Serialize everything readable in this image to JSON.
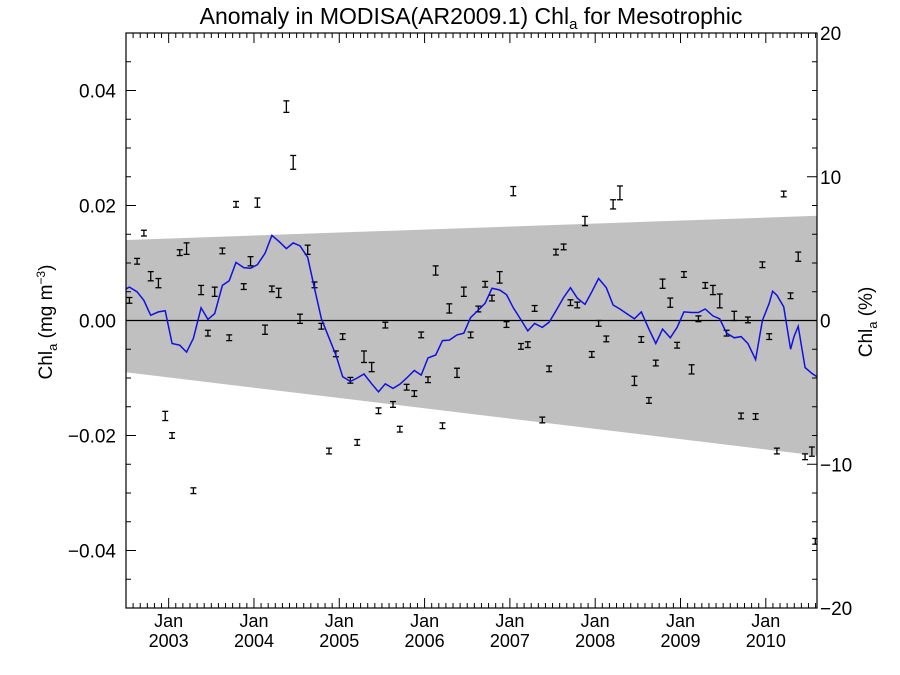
{
  "chart_data": {
    "type": "scatter",
    "title": {
      "main": "Anomaly in MODISA(AR2009.1) Chl",
      "sub": "a",
      "tail": " for Mesotrophic"
    },
    "ylabel_left": {
      "main": "Chl",
      "sub": "a",
      "tail": " (mg m",
      "sup": "−3",
      "close": ")"
    },
    "ylabel_right": {
      "main": "Chl",
      "sub": "a",
      "tail": " (%)"
    },
    "x_tick_month": "Jan",
    "x_ticks": [
      {
        "x": 2003.0,
        "year": "2003"
      },
      {
        "x": 2004.0,
        "year": "2004"
      },
      {
        "x": 2005.0,
        "year": "2005"
      },
      {
        "x": 2006.0,
        "year": "2006"
      },
      {
        "x": 2007.0,
        "year": "2007"
      },
      {
        "x": 2008.0,
        "year": "2008"
      },
      {
        "x": 2009.0,
        "year": "2009"
      },
      {
        "x": 2010.0,
        "year": "2010"
      }
    ],
    "xlim": [
      2002.5,
      2010.6
    ],
    "ylim": [
      -0.05,
      0.05
    ],
    "y_ticks": [
      -0.04,
      -0.02,
      0.0,
      0.02,
      0.04
    ],
    "y_tick_labels": [
      "−0.04",
      "−0.02",
      "0.00",
      "0.02",
      "0.04"
    ],
    "y2lim": [
      -20,
      20
    ],
    "y2_ticks": [
      -20,
      -10,
      0,
      10,
      20
    ],
    "y2_tick_labels": [
      "−20",
      "−10",
      "0",
      "10",
      "20"
    ],
    "zero_line": 0.0,
    "band": {
      "color": "#c0c0c0",
      "upper": [
        [
          2002.5,
          0.014
        ],
        [
          2010.6,
          0.0182
        ]
      ],
      "lower": [
        [
          2002.5,
          -0.009
        ],
        [
          2010.6,
          -0.0235
        ]
      ]
    },
    "series": [
      {
        "kind": "monthly anomaly with error bars",
        "color": "#000000",
        "points": [
          [
            2002.54,
            0.0035,
            0.0005
          ],
          [
            2002.63,
            0.0103,
            0.0005
          ],
          [
            2002.71,
            0.0152,
            0.0005
          ],
          [
            2002.79,
            0.0077,
            0.0008
          ],
          [
            2002.88,
            0.0065,
            0.0008
          ],
          [
            2002.96,
            -0.0166,
            0.0008
          ],
          [
            2003.04,
            -0.02,
            0.0005
          ],
          [
            2003.13,
            0.0118,
            0.0005
          ],
          [
            2003.21,
            0.0125,
            0.001
          ],
          [
            2003.29,
            -0.0296,
            0.0005
          ],
          [
            2003.38,
            0.0053,
            0.0008
          ],
          [
            2003.46,
            -0.0022,
            0.0005
          ],
          [
            2003.54,
            0.005,
            0.0008
          ],
          [
            2003.63,
            0.0121,
            0.0005
          ],
          [
            2003.71,
            -0.003,
            0.0005
          ],
          [
            2003.79,
            0.0202,
            0.0005
          ],
          [
            2003.88,
            0.0059,
            0.0005
          ],
          [
            2003.96,
            0.0103,
            0.0008
          ],
          [
            2004.04,
            0.0205,
            0.0008
          ],
          [
            2004.13,
            -0.0016,
            0.0008
          ],
          [
            2004.21,
            0.0055,
            0.0005
          ],
          [
            2004.29,
            0.0048,
            0.0008
          ],
          [
            2004.38,
            0.0372,
            0.001
          ],
          [
            2004.46,
            0.0275,
            0.0012
          ],
          [
            2004.54,
            0.0003,
            0.0008
          ],
          [
            2004.63,
            0.0123,
            0.0008
          ],
          [
            2004.71,
            0.0062,
            0.0005
          ],
          [
            2004.79,
            -0.001,
            0.0005
          ],
          [
            2004.88,
            -0.0227,
            0.0005
          ],
          [
            2004.96,
            -0.0058,
            0.0005
          ],
          [
            2005.04,
            -0.0028,
            0.0005
          ],
          [
            2005.13,
            -0.0104,
            0.0005
          ],
          [
            2005.21,
            -0.0212,
            0.0005
          ],
          [
            2005.29,
            -0.0063,
            0.001
          ],
          [
            2005.38,
            -0.0081,
            0.0008
          ],
          [
            2005.46,
            -0.0157,
            0.0005
          ],
          [
            2005.54,
            -0.0008,
            0.0005
          ],
          [
            2005.63,
            -0.0146,
            0.0005
          ],
          [
            2005.71,
            -0.0189,
            0.0005
          ],
          [
            2005.79,
            -0.0116,
            0.0005
          ],
          [
            2005.88,
            -0.0127,
            0.0005
          ],
          [
            2005.96,
            -0.0025,
            0.0005
          ],
          [
            2006.04,
            -0.0103,
            0.0005
          ],
          [
            2006.13,
            0.0087,
            0.0008
          ],
          [
            2006.21,
            -0.0183,
            0.0005
          ],
          [
            2006.29,
            0.0021,
            0.0008
          ],
          [
            2006.38,
            -0.0091,
            0.0008
          ],
          [
            2006.46,
            0.005,
            0.0008
          ],
          [
            2006.54,
            -0.0025,
            0.0005
          ],
          [
            2006.63,
            0.002,
            0.0005
          ],
          [
            2006.71,
            0.0063,
            0.0005
          ],
          [
            2006.79,
            0.0039,
            0.0005
          ],
          [
            2006.88,
            0.0075,
            0.001
          ],
          [
            2006.96,
            -0.0007,
            0.0005
          ],
          [
            2007.04,
            0.0225,
            0.0008
          ],
          [
            2007.13,
            -0.0045,
            0.0005
          ],
          [
            2007.21,
            -0.0042,
            0.0005
          ],
          [
            2007.29,
            0.0021,
            0.0005
          ],
          [
            2007.38,
            -0.0173,
            0.0005
          ],
          [
            2007.46,
            -0.0084,
            0.0005
          ],
          [
            2007.54,
            0.0119,
            0.0005
          ],
          [
            2007.63,
            0.0128,
            0.0005
          ],
          [
            2007.71,
            0.0031,
            0.0005
          ],
          [
            2007.79,
            0.0027,
            0.0005
          ],
          [
            2007.88,
            0.0173,
            0.0008
          ],
          [
            2007.96,
            -0.0059,
            0.0005
          ],
          [
            2008.04,
            -0.0005,
            0.0005
          ],
          [
            2008.13,
            -0.0032,
            0.0005
          ],
          [
            2008.21,
            0.0202,
            0.0008
          ],
          [
            2008.29,
            0.0222,
            0.0012
          ],
          [
            2008.46,
            -0.0105,
            0.0008
          ],
          [
            2008.54,
            -0.0033,
            0.0005
          ],
          [
            2008.63,
            -0.0139,
            0.0005
          ],
          [
            2008.71,
            -0.0074,
            0.0005
          ],
          [
            2008.79,
            0.0064,
            0.0008
          ],
          [
            2008.88,
            0.0031,
            0.0008
          ],
          [
            2008.96,
            -0.0043,
            0.0005
          ],
          [
            2009.04,
            0.008,
            0.0005
          ],
          [
            2009.13,
            -0.0085,
            0.0008
          ],
          [
            2009.21,
            0.0003,
            0.0005
          ],
          [
            2009.29,
            0.0061,
            0.0005
          ],
          [
            2009.38,
            0.0053,
            0.0008
          ],
          [
            2009.46,
            0.0034,
            0.0012
          ],
          [
            2009.54,
            -0.0022,
            0.0005
          ],
          [
            2009.63,
            0.0008,
            0.0008
          ],
          [
            2009.71,
            -0.0166,
            0.0005
          ],
          [
            2009.79,
            0.0001,
            0.0005
          ],
          [
            2009.88,
            -0.0167,
            0.0005
          ],
          [
            2009.96,
            0.0097,
            0.0005
          ],
          [
            2010.04,
            -0.0028,
            0.0005
          ],
          [
            2010.13,
            -0.0227,
            0.0005
          ],
          [
            2010.21,
            0.022,
            0.0005
          ],
          [
            2010.29,
            0.0043,
            0.0005
          ],
          [
            2010.38,
            0.0111,
            0.0008
          ],
          [
            2010.46,
            -0.0237,
            0.0005
          ],
          [
            2010.54,
            -0.0228,
            0.0008
          ],
          [
            2010.58,
            -0.0384,
            0.0005
          ]
        ]
      },
      {
        "kind": "running mean",
        "color": "#1010e0",
        "points": [
          [
            2002.5,
            0.0055
          ],
          [
            2002.54,
            0.0058
          ],
          [
            2002.63,
            0.005
          ],
          [
            2002.71,
            0.0035
          ],
          [
            2002.79,
            0.0009
          ],
          [
            2002.88,
            0.0015
          ],
          [
            2002.96,
            0.0017
          ],
          [
            2003.04,
            -0.004
          ],
          [
            2003.13,
            -0.0043
          ],
          [
            2003.21,
            -0.0055
          ],
          [
            2003.29,
            -0.0031
          ],
          [
            2003.38,
            0.0022
          ],
          [
            2003.46,
            0.0002
          ],
          [
            2003.54,
            0.0012
          ],
          [
            2003.63,
            0.0061
          ],
          [
            2003.71,
            0.0069
          ],
          [
            2003.79,
            0.0101
          ],
          [
            2003.88,
            0.0092
          ],
          [
            2003.96,
            0.0091
          ],
          [
            2004.04,
            0.0097
          ],
          [
            2004.13,
            0.0117
          ],
          [
            2004.21,
            0.0148
          ],
          [
            2004.29,
            0.0138
          ],
          [
            2004.38,
            0.0125
          ],
          [
            2004.46,
            0.0135
          ],
          [
            2004.54,
            0.013
          ],
          [
            2004.63,
            0.011
          ],
          [
            2004.71,
            0.0056
          ],
          [
            2004.79,
            0.0003
          ],
          [
            2004.88,
            -0.003
          ],
          [
            2004.96,
            -0.006
          ],
          [
            2005.04,
            -0.0098
          ],
          [
            2005.13,
            -0.0106
          ],
          [
            2005.21,
            -0.01
          ],
          [
            2005.29,
            -0.0093
          ],
          [
            2005.38,
            -0.011
          ],
          [
            2005.46,
            -0.0124
          ],
          [
            2005.54,
            -0.011
          ],
          [
            2005.63,
            -0.0118
          ],
          [
            2005.71,
            -0.0111
          ],
          [
            2005.79,
            -0.01
          ],
          [
            2005.88,
            -0.0087
          ],
          [
            2005.96,
            -0.0095
          ],
          [
            2006.04,
            -0.0065
          ],
          [
            2006.13,
            -0.006
          ],
          [
            2006.21,
            -0.0035
          ],
          [
            2006.29,
            -0.0034
          ],
          [
            2006.38,
            -0.0025
          ],
          [
            2006.46,
            -0.0022
          ],
          [
            2006.54,
            0.0005
          ],
          [
            2006.63,
            0.0018
          ],
          [
            2006.71,
            0.003
          ],
          [
            2006.79,
            0.0056
          ],
          [
            2006.88,
            0.0053
          ],
          [
            2006.96,
            0.0045
          ],
          [
            2007.04,
            0.0022
          ],
          [
            2007.13,
            0.0001
          ],
          [
            2007.21,
            -0.0018
          ],
          [
            2007.29,
            -0.0005
          ],
          [
            2007.38,
            -0.0012
          ],
          [
            2007.46,
            -0.0003
          ],
          [
            2007.54,
            0.0017
          ],
          [
            2007.63,
            0.004
          ],
          [
            2007.71,
            0.0057
          ],
          [
            2007.79,
            0.0039
          ],
          [
            2007.88,
            0.0028
          ],
          [
            2007.96,
            0.005
          ],
          [
            2008.04,
            0.0073
          ],
          [
            2008.13,
            0.0057
          ],
          [
            2008.21,
            0.0027
          ],
          [
            2008.29,
            0.002
          ],
          [
            2008.38,
            0.0011
          ],
          [
            2008.46,
            0.0003
          ],
          [
            2008.54,
            0.0015
          ],
          [
            2008.63,
            -0.0015
          ],
          [
            2008.71,
            -0.004
          ],
          [
            2008.79,
            -0.0015
          ],
          [
            2008.88,
            -0.003
          ],
          [
            2008.96,
            -0.0012
          ],
          [
            2009.04,
            0.0015
          ],
          [
            2009.13,
            0.0014
          ],
          [
            2009.21,
            0.0014
          ],
          [
            2009.29,
            0.002
          ],
          [
            2009.38,
            0.0008
          ],
          [
            2009.46,
            0.0003
          ],
          [
            2009.54,
            -0.0022
          ],
          [
            2009.63,
            -0.003
          ],
          [
            2009.71,
            -0.0028
          ],
          [
            2009.79,
            -0.004
          ],
          [
            2009.88,
            -0.0068
          ],
          [
            2009.96,
            0.0
          ],
          [
            2010.04,
            0.003
          ],
          [
            2010.08,
            0.0051
          ],
          [
            2010.13,
            0.0044
          ],
          [
            2010.21,
            0.0024
          ],
          [
            2010.29,
            -0.005
          ],
          [
            2010.33,
            -0.0028
          ],
          [
            2010.38,
            -0.001
          ],
          [
            2010.46,
            -0.0082
          ],
          [
            2010.54,
            -0.0092
          ],
          [
            2010.6,
            -0.0098
          ]
        ]
      }
    ]
  }
}
